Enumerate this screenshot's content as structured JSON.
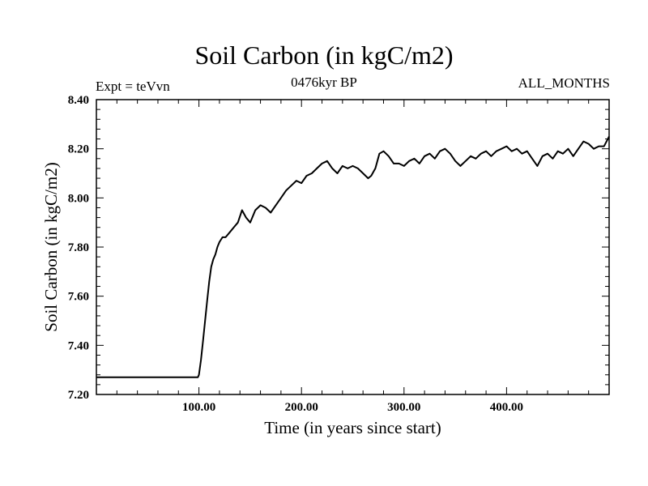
{
  "header": {
    "title": "Soil Carbon (in kgC/m2)",
    "subtitle": "0476kyr BP",
    "left_label": "Expt = teVvn",
    "right_label": "ALL_MONTHS"
  },
  "chart_data": {
    "type": "line",
    "title": "Soil Carbon (in kgC/m2)",
    "xlabel": "Time (in years since start)",
    "ylabel": "Soil Carbon (in kgC/m2)",
    "xlim": [
      0,
      500
    ],
    "ylim": [
      7.2,
      8.4
    ],
    "xticks": [
      100,
      200,
      300,
      400
    ],
    "xtick_labels": [
      "100.00",
      "200.00",
      "300.00",
      "400.00"
    ],
    "yticks": [
      7.2,
      7.4,
      7.6,
      7.8,
      8.0,
      8.2,
      8.4
    ],
    "ytick_labels": [
      "7.20",
      "7.40",
      "7.60",
      "7.80",
      "8.00",
      "8.20",
      "8.40"
    ],
    "grid": false,
    "legend": "none",
    "series": [
      {
        "x": [
          0,
          99,
          100,
          102,
          104,
          106,
          108,
          110,
          112,
          114,
          116,
          118,
          120,
          123,
          126,
          130,
          134,
          138,
          142,
          146,
          150,
          155,
          160,
          165,
          170,
          175,
          180,
          185,
          190,
          195,
          200,
          205,
          210,
          215,
          220,
          225,
          230,
          235,
          240,
          245,
          250,
          255,
          260,
          265,
          268,
          272,
          276,
          280,
          285,
          290,
          295,
          300,
          305,
          310,
          315,
          320,
          325,
          330,
          335,
          340,
          345,
          350,
          355,
          360,
          365,
          370,
          375,
          380,
          385,
          390,
          395,
          400,
          405,
          410,
          415,
          420,
          425,
          430,
          435,
          440,
          445,
          450,
          455,
          460,
          465,
          470,
          475,
          480,
          485,
          490,
          495,
          500
        ],
        "y": [
          7.27,
          7.27,
          7.28,
          7.34,
          7.42,
          7.5,
          7.58,
          7.66,
          7.72,
          7.75,
          7.77,
          7.8,
          7.82,
          7.84,
          7.84,
          7.86,
          7.88,
          7.9,
          7.95,
          7.92,
          7.9,
          7.95,
          7.97,
          7.96,
          7.94,
          7.97,
          8.0,
          8.03,
          8.05,
          8.07,
          8.06,
          8.09,
          8.1,
          8.12,
          8.14,
          8.15,
          8.12,
          8.1,
          8.13,
          8.12,
          8.13,
          8.12,
          8.1,
          8.08,
          8.09,
          8.12,
          8.18,
          8.19,
          8.17,
          8.14,
          8.14,
          8.13,
          8.15,
          8.16,
          8.14,
          8.17,
          8.18,
          8.16,
          8.19,
          8.2,
          8.18,
          8.15,
          8.13,
          8.15,
          8.17,
          8.16,
          8.18,
          8.19,
          8.17,
          8.19,
          8.2,
          8.21,
          8.19,
          8.2,
          8.18,
          8.19,
          8.16,
          8.13,
          8.17,
          8.18,
          8.16,
          8.19,
          8.18,
          8.2,
          8.17,
          8.2,
          8.23,
          8.22,
          8.2,
          8.21,
          8.21,
          8.25
        ]
      }
    ]
  }
}
